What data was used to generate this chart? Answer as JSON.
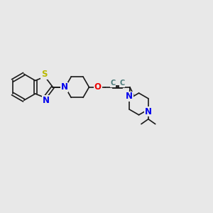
{
  "bg_color": "#e8e8e8",
  "bond_color": "#1a1a1a",
  "S_color": "#b8b800",
  "N_color": "#0000ee",
  "O_color": "#ee0000",
  "C_color": "#4a7a7a",
  "font_size": 8.5,
  "figsize": [
    3.0,
    3.0
  ],
  "dpi": 100,
  "xlim": [
    0,
    12
  ],
  "ylim": [
    0,
    10
  ]
}
